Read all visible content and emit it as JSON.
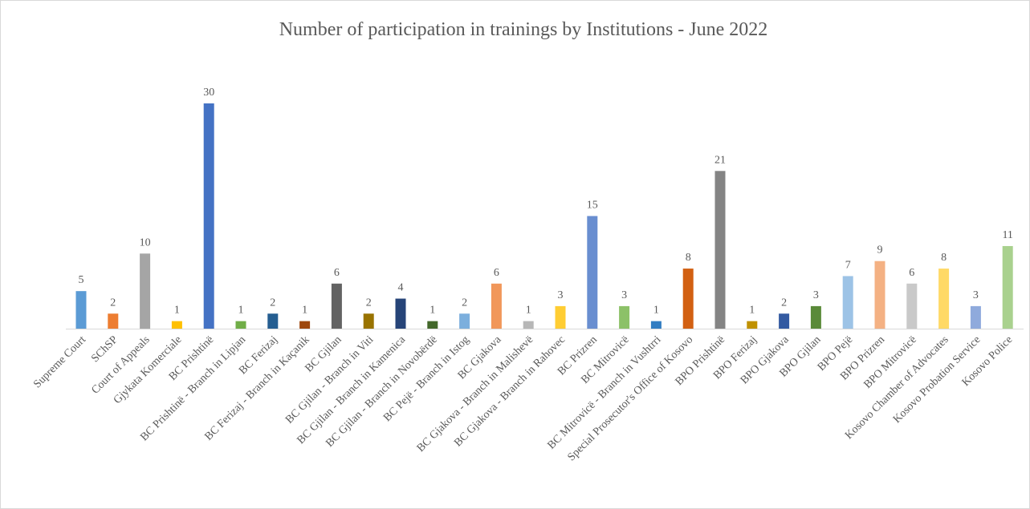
{
  "chart_data": {
    "type": "bar",
    "title": "Number of participation in trainings  by Institutions - June 2022",
    "categories": [
      "Supreme Court",
      "SChSP",
      "Court of Appeals",
      "Gjykata Komerciale",
      "BC Prishtinë",
      "BC Prishtinë - Branch in Lipjan",
      "BC Ferizaj",
      "BC Ferizaj - Branch in Kaçanik",
      "BC Gjilan",
      "BC Gjilan - Branch in Viti",
      "BC Gjilan - Branch in Kamenica",
      "BC Gjilan - Branch in Novobërdë",
      "BC Pejë - Branch in Istog",
      "BC Gjakova",
      "BC Gjakova  - Branch in Malishevë",
      "BC Gjakova  - Branch in Rahovec",
      "BC Prizren",
      "BC Mitrovicë",
      "BC Mitrovicë - Branch in Vushtrri",
      "Special Prosecutor's Office of Kosovo",
      "BPO Prishtinë",
      "BPO Ferizaj",
      "BPO Gjakova",
      "BPO Gjilan",
      "BPO Pejë",
      "BPO Prizren",
      "BPO Mitrovicë",
      "Kosovo Chamber of Advocates",
      "Kosovo Probation Service",
      "Kosovo Police"
    ],
    "values": [
      5,
      2,
      10,
      1,
      30,
      1,
      2,
      1,
      6,
      2,
      4,
      1,
      2,
      6,
      1,
      3,
      15,
      3,
      1,
      8,
      21,
      1,
      2,
      3,
      7,
      9,
      6,
      8,
      3,
      11
    ],
    "colors": [
      "#5b9bd5",
      "#ed7d31",
      "#a5a5a5",
      "#ffc000",
      "#4472c4",
      "#70ad47",
      "#255e91",
      "#9e480e",
      "#636363",
      "#997300",
      "#264478",
      "#43682b",
      "#7cafdd",
      "#f1975a",
      "#b7b7b7",
      "#ffcd33",
      "#698ed0",
      "#8cc168",
      "#327dc2",
      "#d26012",
      "#848484",
      "#c09100",
      "#335aa1",
      "#5a8a39",
      "#9dc3e6",
      "#f4b183",
      "#c9c9c9",
      "#ffd966",
      "#8faadc",
      "#a9d18e"
    ],
    "grid": false
  }
}
